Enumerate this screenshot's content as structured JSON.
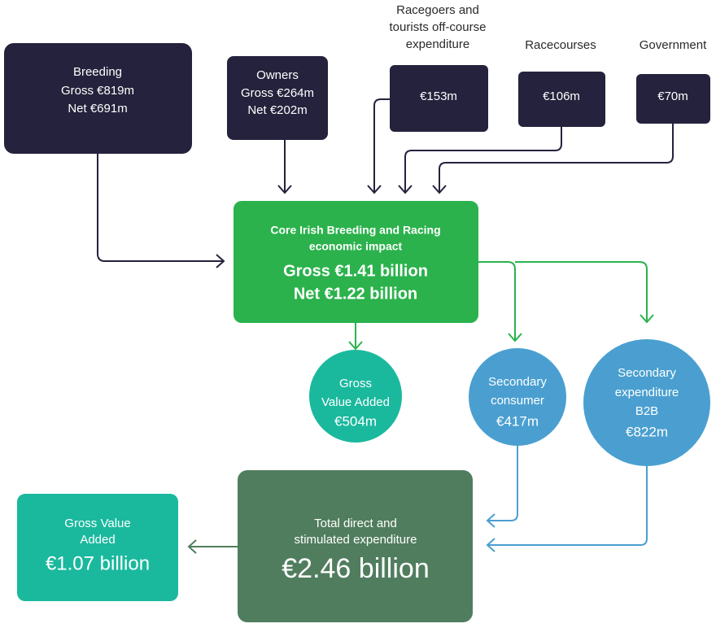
{
  "nodes": [
    {
      "lines": [
        "Breeding",
        "Gross €819m",
        "Net €691m"
      ]
    },
    {
      "lines": [
        "Owners",
        "Gross €264m",
        "Net €202m"
      ]
    },
    {
      "caption": [
        "Racegoers and",
        "tourists off-course",
        "expenditure"
      ],
      "lines": [
        "€153m"
      ]
    },
    {
      "caption": [
        "Racecourses"
      ],
      "lines": [
        "€106m"
      ]
    },
    {
      "caption": [
        "Government"
      ],
      "lines": [
        "€70m"
      ]
    },
    {
      "lines": [
        "Core Irish Breeding and Racing",
        "economic impact",
        "Gross €1.41 billion",
        "Net €1.22 billion"
      ]
    },
    {
      "lines": [
        "Gross",
        "Value Added",
        "€504m"
      ]
    },
    {
      "lines": [
        "Secondary",
        "consumer",
        "€417m"
      ]
    },
    {
      "lines": [
        "Secondary",
        "expenditure",
        "B2B",
        "€822m"
      ]
    },
    {
      "lines": [
        "Total direct and",
        "stimulated expenditure",
        "€2.46 billion"
      ]
    },
    {
      "lines": [
        "Gross Value",
        "Added",
        "€1.07 billion"
      ]
    }
  ]
}
